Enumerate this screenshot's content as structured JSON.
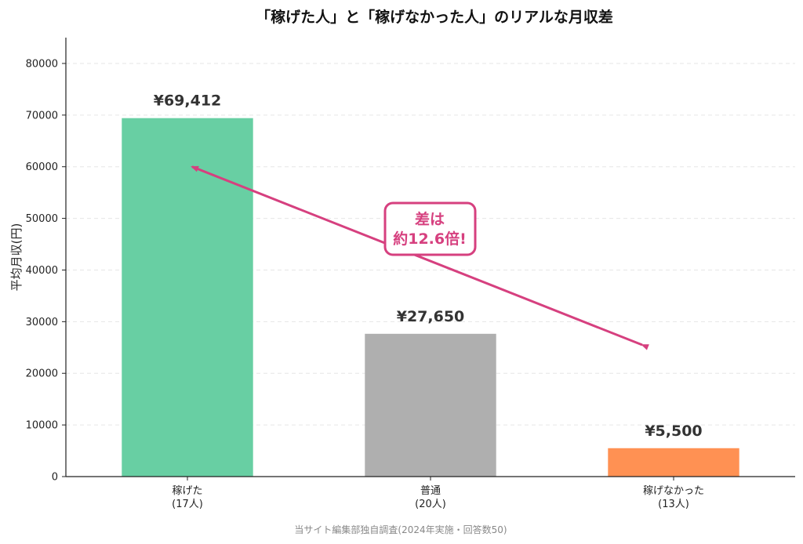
{
  "chart_data": {
    "type": "bar",
    "title": "「稼げた人」と「稼げなかった人」のリアルな月収差",
    "ylabel": "平均月収(円)",
    "xlabel": "",
    "ylim": [
      0,
      85000
    ],
    "yticks": [
      0,
      10000,
      20000,
      30000,
      40000,
      50000,
      60000,
      70000,
      80000
    ],
    "grid": true,
    "categories": [
      {
        "name": "稼げた",
        "sub": "(17人)"
      },
      {
        "name": "普通",
        "sub": "(20人)"
      },
      {
        "name": "稼げなかった",
        "sub": "(13人)"
      }
    ],
    "values": [
      69412,
      27650,
      5500
    ],
    "data_labels": [
      "¥69,412",
      "¥27,650",
      "¥5,500"
    ],
    "colors": [
      "#68cfa3",
      "#afafaf",
      "#ff9153"
    ],
    "annotation": {
      "lines": [
        "差は",
        "約12.6倍!"
      ],
      "color": "#d6407f",
      "arrow_from": {
        "category": 2,
        "value": 25500
      },
      "arrow_to": {
        "category": 0,
        "value": 60000
      }
    },
    "footnote": "当サイト編集部独自調査(2024年実施・回答数50)"
  }
}
